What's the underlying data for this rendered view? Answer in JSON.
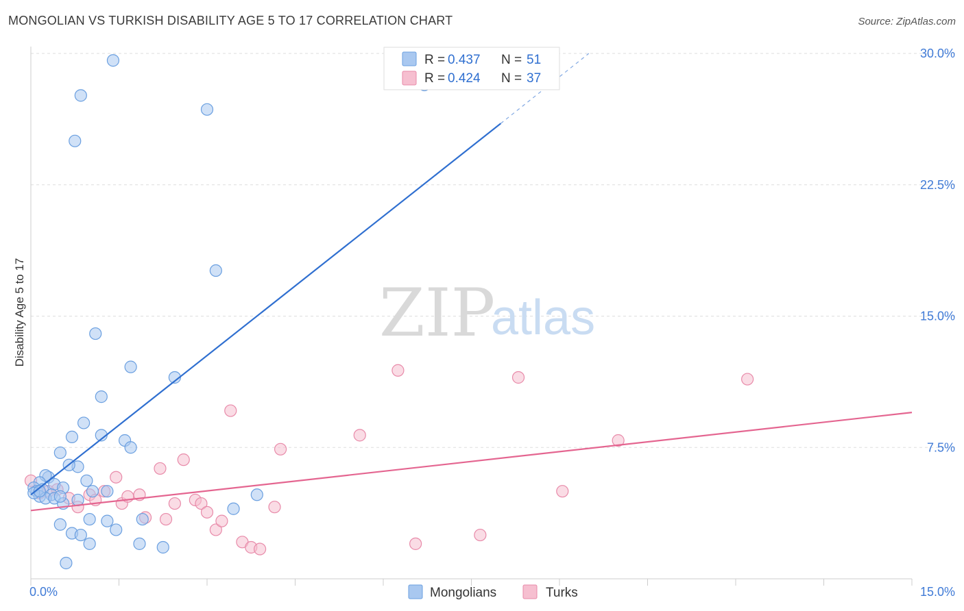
{
  "title": "MONGOLIAN VS TURKISH DISABILITY AGE 5 TO 17 CORRELATION CHART",
  "source": "Source: ZipAtlas.com",
  "watermark": {
    "zip": "ZIP",
    "atlas": "atlas"
  },
  "colors": {
    "mongolians_fill": "#a9c8f0",
    "mongolians_stroke": "#6a9fe0",
    "mongolians_line": "#2f6fd0",
    "turks_fill": "#f6bfd0",
    "turks_stroke": "#e88aa9",
    "turks_line": "#e46590",
    "grid": "#dddddd",
    "tick_text": "#3f7ad6"
  },
  "legend": {
    "items": [
      {
        "r_label": "R =",
        "r_value": "0.437",
        "n_label": "N =",
        "n_value": "51"
      },
      {
        "r_label": "R =",
        "r_value": "0.424",
        "n_label": "N =",
        "n_value": "37"
      }
    ]
  },
  "bottom_legend": {
    "mongolians": "Mongolians",
    "turks": "Turks"
  },
  "chart_data": {
    "type": "scatter",
    "title": "MONGOLIAN VS TURKISH DISABILITY AGE 5 TO 17 CORRELATION CHART",
    "xlabel": "",
    "ylabel": "Disability Age 5 to 17",
    "xlim": [
      0,
      15
    ],
    "ylim": [
      0,
      30
    ],
    "x_tick_labels": [
      "0.0%",
      "15.0%"
    ],
    "y_ticks": [
      7.5,
      15.0,
      22.5,
      30.0
    ],
    "y_tick_labels": [
      "7.5%",
      "15.0%",
      "22.5%",
      "30.0%"
    ],
    "grid": true,
    "series": [
      {
        "name": "Mongolians",
        "r": 0.437,
        "n": 51,
        "trend": {
          "x0": 0.0,
          "y0": 4.8,
          "x1": 8.0,
          "y1": 26.0,
          "dashed_to_x": 9.5,
          "dashed_to_y": 30.0
        },
        "points": [
          [
            1.4,
            29.6
          ],
          [
            0.85,
            27.6
          ],
          [
            3.0,
            26.8
          ],
          [
            0.75,
            25.0
          ],
          [
            6.7,
            28.2
          ],
          [
            3.15,
            17.6
          ],
          [
            1.1,
            14.0
          ],
          [
            1.7,
            12.1
          ],
          [
            2.45,
            11.5
          ],
          [
            1.2,
            10.4
          ],
          [
            0.9,
            8.9
          ],
          [
            0.7,
            8.1
          ],
          [
            1.2,
            8.2
          ],
          [
            1.6,
            7.9
          ],
          [
            0.5,
            7.2
          ],
          [
            1.7,
            7.5
          ],
          [
            0.8,
            6.4
          ],
          [
            0.65,
            6.5
          ],
          [
            0.95,
            5.6
          ],
          [
            1.3,
            5.0
          ],
          [
            0.3,
            5.8
          ],
          [
            0.25,
            5.9
          ],
          [
            0.15,
            5.5
          ],
          [
            0.4,
            5.4
          ],
          [
            0.55,
            5.2
          ],
          [
            0.05,
            5.2
          ],
          [
            0.1,
            5.0
          ],
          [
            0.2,
            5.1
          ],
          [
            0.35,
            4.8
          ],
          [
            0.15,
            4.7
          ],
          [
            0.25,
            4.6
          ],
          [
            0.4,
            4.6
          ],
          [
            0.55,
            4.3
          ],
          [
            0.8,
            4.5
          ],
          [
            1.05,
            5.0
          ],
          [
            0.05,
            4.9
          ],
          [
            0.5,
            4.7
          ],
          [
            0.5,
            3.1
          ],
          [
            0.7,
            2.6
          ],
          [
            0.85,
            2.5
          ],
          [
            1.0,
            2.0
          ],
          [
            1.0,
            3.4
          ],
          [
            1.3,
            3.3
          ],
          [
            1.45,
            2.8
          ],
          [
            1.9,
            3.4
          ],
          [
            1.85,
            2.0
          ],
          [
            2.25,
            1.8
          ],
          [
            3.45,
            4.0
          ],
          [
            3.85,
            4.8
          ],
          [
            0.6,
            0.9
          ],
          [
            0.15,
            5.0
          ]
        ]
      },
      {
        "name": "Turks",
        "r": 0.424,
        "n": 37,
        "trend": {
          "x0": 0.0,
          "y0": 3.9,
          "x1": 15.0,
          "y1": 9.5
        },
        "points": [
          [
            0.0,
            5.6
          ],
          [
            0.3,
            5.0
          ],
          [
            0.65,
            4.6
          ],
          [
            0.8,
            4.1
          ],
          [
            1.0,
            4.8
          ],
          [
            1.1,
            4.5
          ],
          [
            1.25,
            5.0
          ],
          [
            1.45,
            5.8
          ],
          [
            1.55,
            4.3
          ],
          [
            1.65,
            4.7
          ],
          [
            1.85,
            4.8
          ],
          [
            1.95,
            3.5
          ],
          [
            2.2,
            6.3
          ],
          [
            2.3,
            3.4
          ],
          [
            2.45,
            4.3
          ],
          [
            2.6,
            6.8
          ],
          [
            2.8,
            4.5
          ],
          [
            2.9,
            4.3
          ],
          [
            3.0,
            3.8
          ],
          [
            3.15,
            2.8
          ],
          [
            3.25,
            3.3
          ],
          [
            3.4,
            9.6
          ],
          [
            3.6,
            2.1
          ],
          [
            3.75,
            1.8
          ],
          [
            3.9,
            1.7
          ],
          [
            4.15,
            4.1
          ],
          [
            4.25,
            7.4
          ],
          [
            5.6,
            8.2
          ],
          [
            6.25,
            11.9
          ],
          [
            6.55,
            2.0
          ],
          [
            7.65,
            2.5
          ],
          [
            8.3,
            11.5
          ],
          [
            9.05,
            5.0
          ],
          [
            10.0,
            7.9
          ],
          [
            12.2,
            11.4
          ],
          [
            0.15,
            4.9
          ],
          [
            0.45,
            5.1
          ]
        ]
      }
    ]
  }
}
